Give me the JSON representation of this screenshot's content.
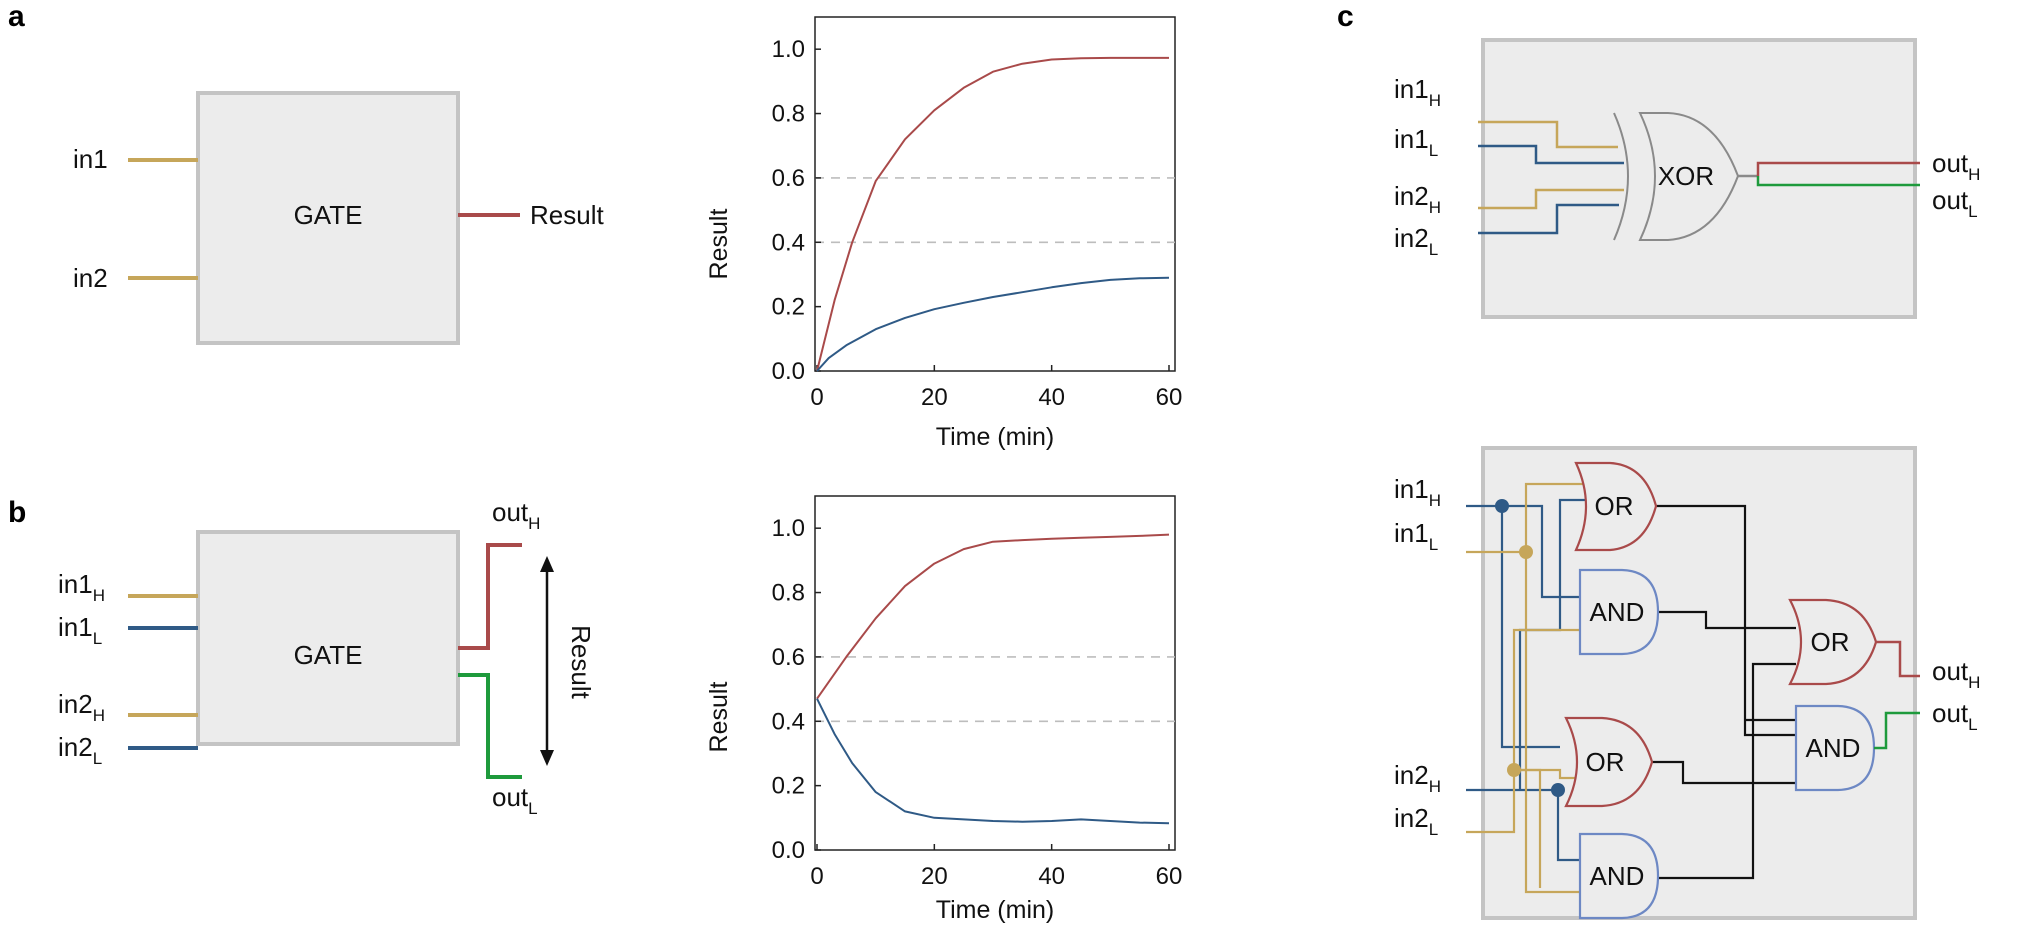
{
  "panels": {
    "a": "a",
    "b": "b",
    "c": "c"
  },
  "colors": {
    "gold": "#c6a65a",
    "blue": "#2f5a86",
    "red": "#a94a4a",
    "green": "#1e9a3c",
    "gray": "#8a8a8a",
    "black": "#111111"
  },
  "panel_a": {
    "gate": "GATE",
    "in1": "in1",
    "in2": "in2",
    "result": "Result"
  },
  "panel_b": {
    "gate": "GATE",
    "inputs": [
      {
        "base": "in1",
        "sub": "H"
      },
      {
        "base": "in1",
        "sub": "L"
      },
      {
        "base": "in2",
        "sub": "H"
      },
      {
        "base": "in2",
        "sub": "L"
      }
    ],
    "out_h": {
      "base": "out",
      "sub": "H"
    },
    "out_l": {
      "base": "out",
      "sub": "L"
    },
    "result": "Result"
  },
  "panel_c_top": {
    "gate": "XOR",
    "inputs": [
      {
        "base": "in1",
        "sub": "H"
      },
      {
        "base": "in1",
        "sub": "L"
      },
      {
        "base": "in2",
        "sub": "H"
      },
      {
        "base": "in2",
        "sub": "L"
      }
    ],
    "out_h": {
      "base": "out",
      "sub": "H"
    },
    "out_l": {
      "base": "out",
      "sub": "L"
    }
  },
  "panel_c_bottom": {
    "gates": {
      "or": "OR",
      "and": "AND"
    },
    "in1h": {
      "base": "in1",
      "sub": "H"
    },
    "in1l": {
      "base": "in1",
      "sub": "L"
    },
    "in2h": {
      "base": "in2",
      "sub": "H"
    },
    "in2l": {
      "base": "in2",
      "sub": "L"
    },
    "out_h": {
      "base": "out",
      "sub": "H"
    },
    "out_l": {
      "base": "out",
      "sub": "L"
    }
  },
  "chart_data": [
    {
      "type": "line",
      "xlabel": "Time (min)",
      "ylabel": "Result",
      "xlim": [
        0,
        60
      ],
      "ylim": [
        0,
        1.1
      ],
      "xticks": [
        "0",
        "20",
        "40",
        "60"
      ],
      "yticks": [
        "0.0",
        "0.2",
        "0.4",
        "0.6",
        "0.8",
        "1.0"
      ],
      "reference_lines": [
        0.4,
        0.6
      ],
      "series": [
        {
          "color": "#a94a4a",
          "x": [
            0,
            3,
            6,
            10,
            15,
            20,
            25,
            30,
            35,
            40,
            45,
            50,
            55,
            60
          ],
          "y": [
            0,
            0.22,
            0.4,
            0.59,
            0.72,
            0.81,
            0.88,
            0.93,
            0.955,
            0.968,
            0.972,
            0.973,
            0.973,
            0.973
          ]
        },
        {
          "color": "#2f5a86",
          "x": [
            0,
            2,
            5,
            10,
            15,
            20,
            25,
            30,
            35,
            40,
            45,
            50,
            55,
            60
          ],
          "y": [
            0,
            0.04,
            0.08,
            0.13,
            0.165,
            0.192,
            0.212,
            0.23,
            0.245,
            0.26,
            0.273,
            0.283,
            0.288,
            0.29
          ]
        }
      ]
    },
    {
      "type": "line",
      "xlabel": "Time (min)",
      "ylabel": "Result",
      "xlim": [
        0,
        60
      ],
      "ylim": [
        0,
        1.1
      ],
      "xticks": [
        "0",
        "20",
        "40",
        "60"
      ],
      "yticks": [
        "0.0",
        "0.2",
        "0.4",
        "0.6",
        "0.8",
        "1.0"
      ],
      "reference_lines": [
        0.4,
        0.6
      ],
      "series": [
        {
          "color": "#a94a4a",
          "x": [
            0,
            5,
            10,
            15,
            20,
            25,
            30,
            35,
            40,
            45,
            50,
            55,
            60
          ],
          "y": [
            0.47,
            0.6,
            0.72,
            0.82,
            0.89,
            0.935,
            0.958,
            0.963,
            0.967,
            0.97,
            0.973,
            0.976,
            0.98
          ]
        },
        {
          "color": "#2f5a86",
          "x": [
            0,
            3,
            6,
            10,
            15,
            20,
            25,
            30,
            35,
            40,
            45,
            50,
            55,
            60
          ],
          "y": [
            0.47,
            0.36,
            0.27,
            0.18,
            0.12,
            0.1,
            0.095,
            0.09,
            0.088,
            0.09,
            0.095,
            0.09,
            0.085,
            0.083
          ]
        }
      ]
    }
  ]
}
